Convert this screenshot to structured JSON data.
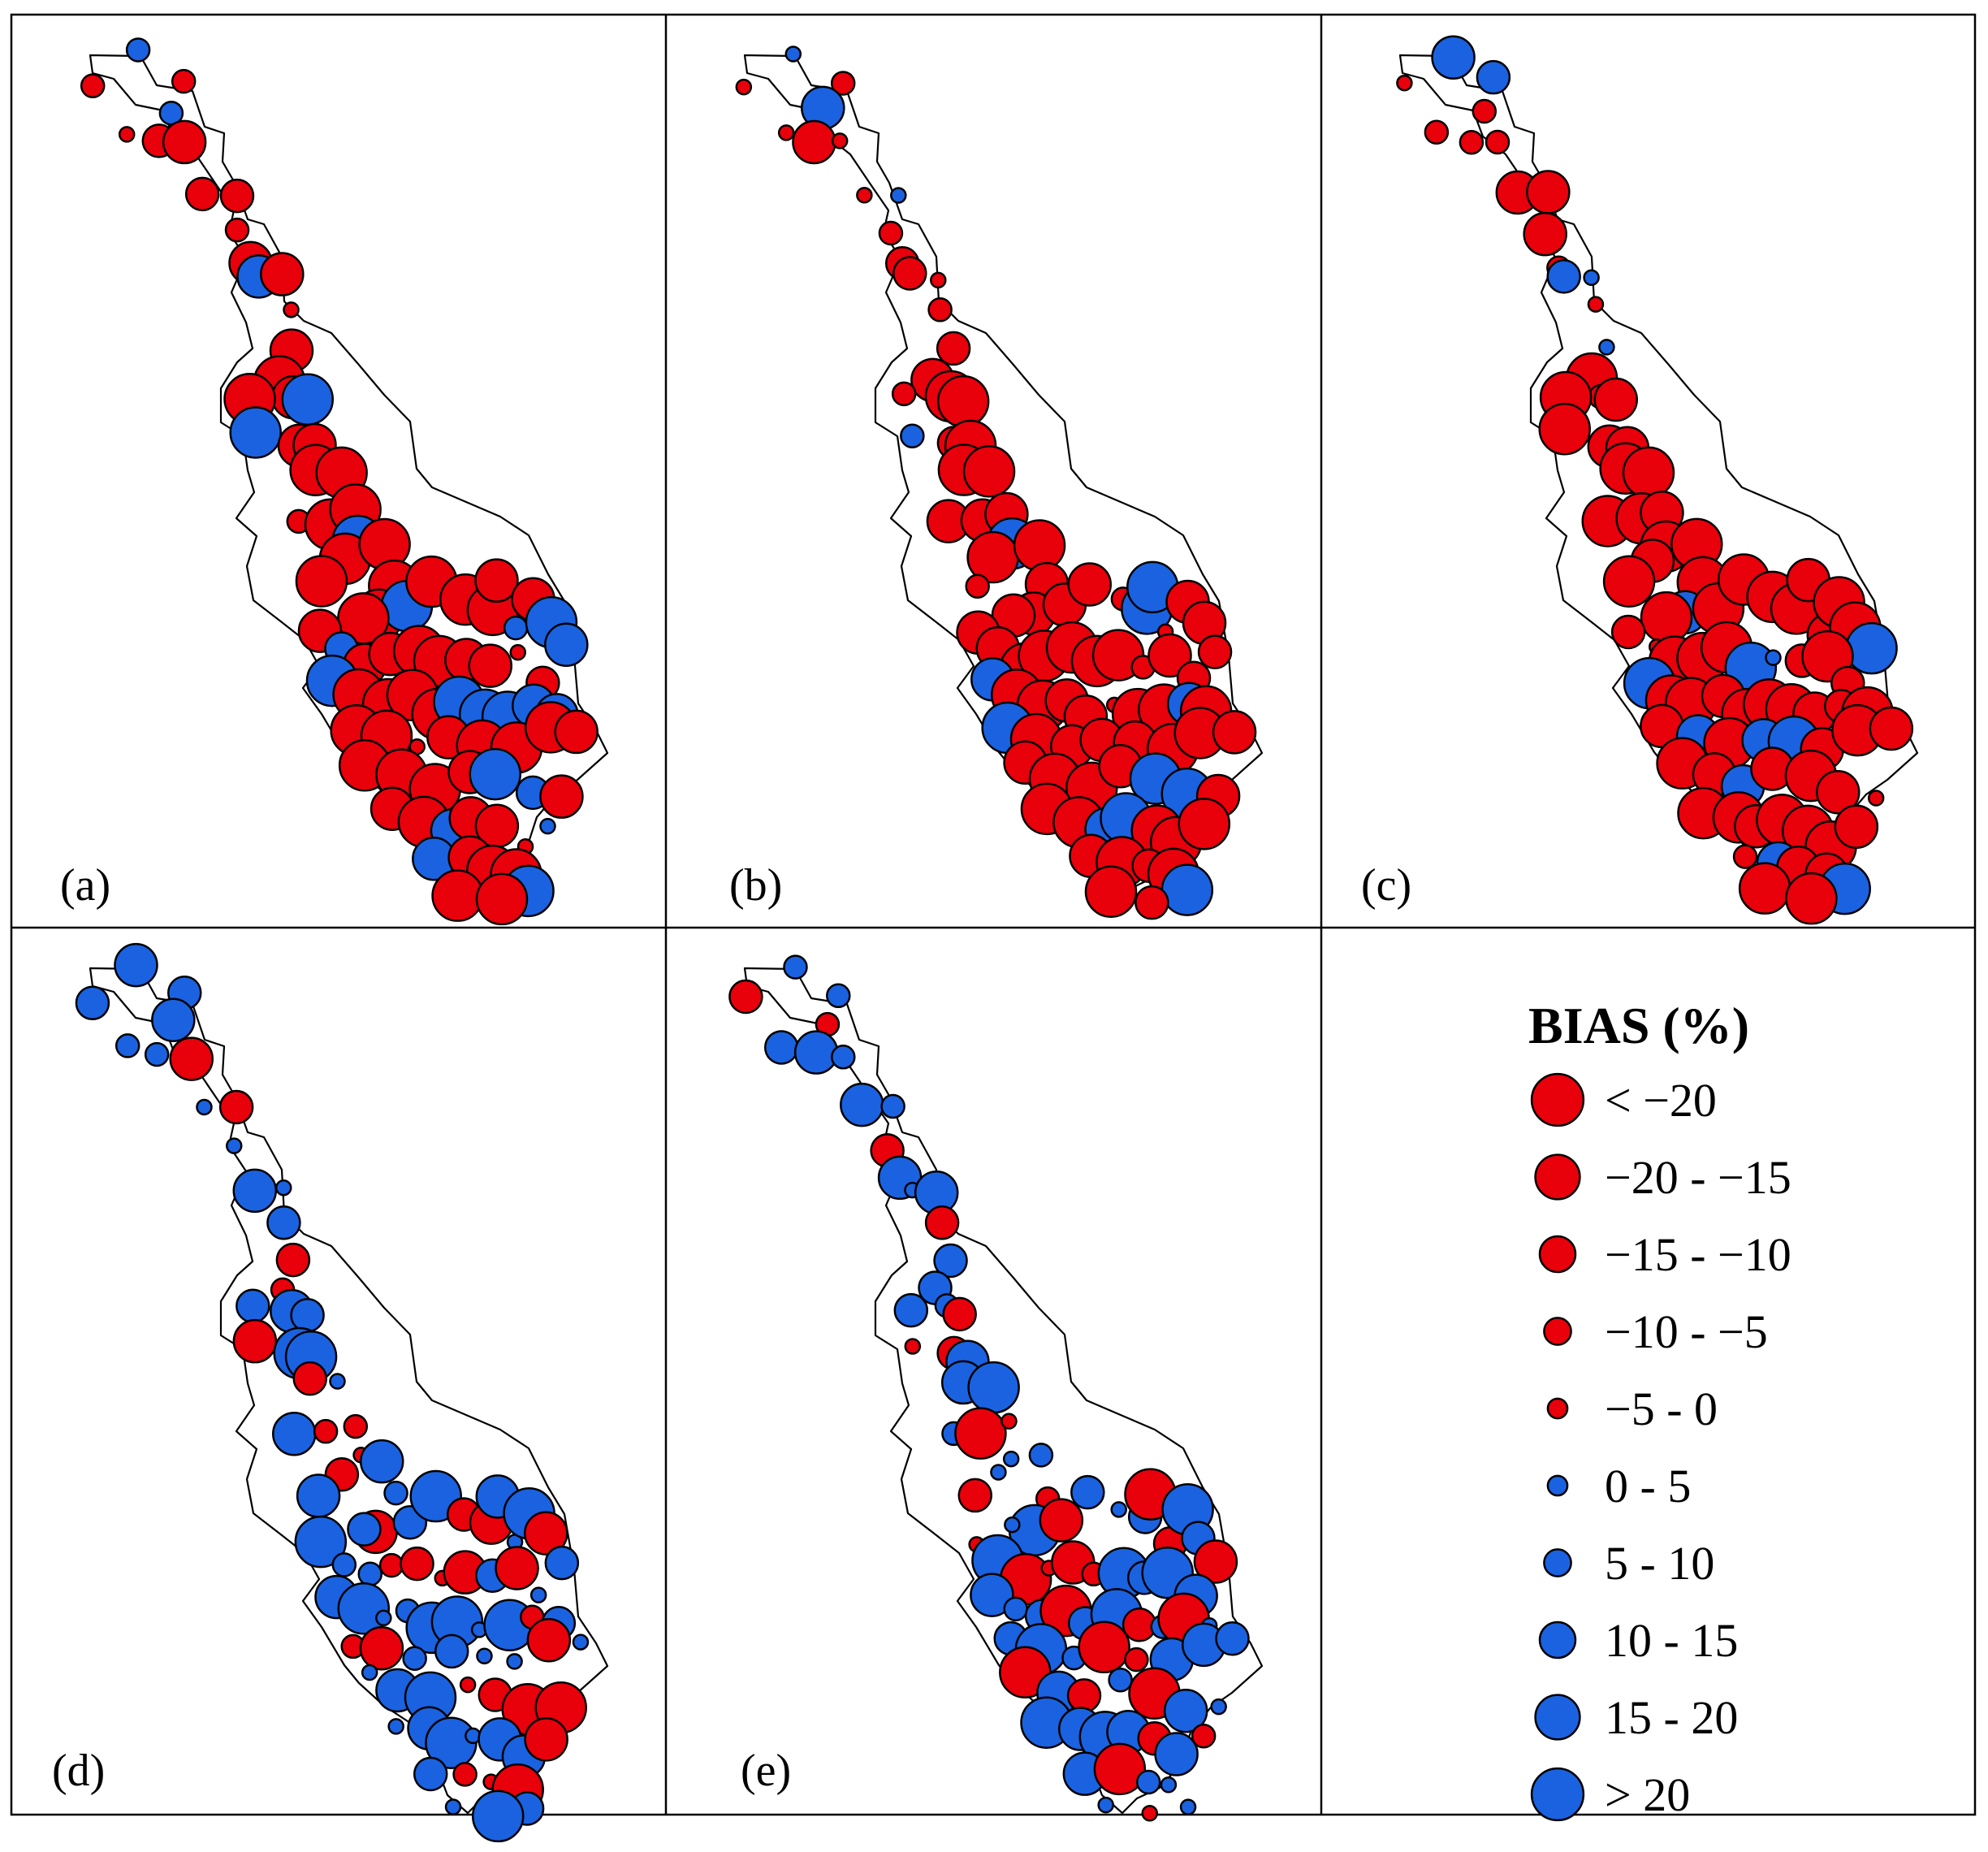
{
  "colors": {
    "negative": "#e8000b",
    "positive": "#1a62e0",
    "outline": "#000000",
    "frame": "#000000"
  },
  "panels": [
    {
      "id": "a",
      "label": "(a)",
      "seed": 11,
      "blue_share": 0.22,
      "big_share": 0.78
    },
    {
      "id": "b",
      "label": "(b)",
      "seed": 23,
      "blue_share": 0.14,
      "big_share": 0.8
    },
    {
      "id": "c",
      "label": "(c)",
      "seed": 37,
      "blue_share": 0.14,
      "big_share": 0.8
    },
    {
      "id": "d",
      "label": "(d)",
      "seed": 53,
      "blue_share": 0.62,
      "big_share": 0.28
    },
    {
      "id": "e",
      "label": "(e)",
      "seed": 71,
      "blue_share": 0.68,
      "big_share": 0.26
    }
  ],
  "legend": {
    "title": "BIAS (%)",
    "classes": [
      {
        "label": "< −20",
        "color": "negative",
        "size_rank": 5
      },
      {
        "label": "−20 - −15",
        "color": "negative",
        "size_rank": 4
      },
      {
        "label": "−15 - −10",
        "color": "negative",
        "size_rank": 3
      },
      {
        "label": "−10 - −5",
        "color": "negative",
        "size_rank": 2
      },
      {
        "label": "−5 - 0",
        "color": "negative",
        "size_rank": 1
      },
      {
        "label": "0 - 5",
        "color": "positive",
        "size_rank": 1
      },
      {
        "label": "5 - 10",
        "color": "positive",
        "size_rank": 2
      },
      {
        "label": "10 - 15",
        "color": "positive",
        "size_rank": 3
      },
      {
        "label": "15 - 20",
        "color": "positive",
        "size_rank": 4
      },
      {
        "label": "> 20",
        "color": "positive",
        "size_rank": 5
      }
    ]
  }
}
